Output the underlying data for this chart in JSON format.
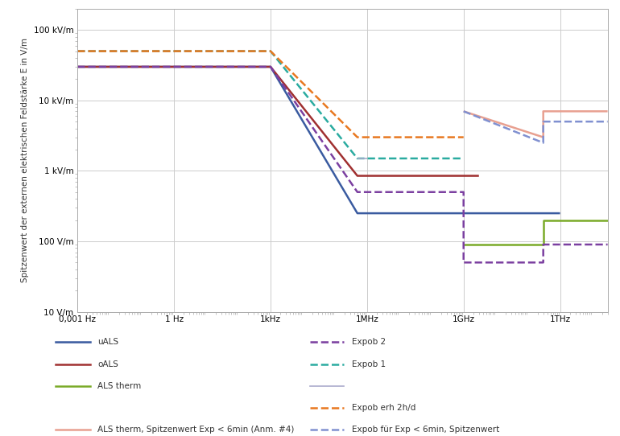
{
  "ylabel": "Spitzenwert der externen elektrischen Feldstärke E in V/m",
  "ytick_labels": [
    "10 V/m",
    "100 V/m",
    "1 kV/m",
    "10 kV/m",
    "100 kV/m"
  ],
  "ytick_vals": [
    10,
    100,
    1000,
    10000,
    100000
  ],
  "xtick_labels": [
    "0,001 Hz",
    "1 Hz",
    "1kHz",
    "1MHz",
    "1GHz",
    "1THz"
  ],
  "xtick_vals": [
    0.001,
    1,
    1000,
    1000000,
    1000000000,
    1000000000000
  ],
  "xlim_lo": 0.001,
  "xlim_hi": 30000000000000.0,
  "ylim_lo": 10,
  "ylim_hi": 200000,
  "series": [
    {
      "name": "uALS",
      "color": "#3A5BA0",
      "linestyle": "solid",
      "linewidth": 1.8,
      "x": [
        0.001,
        1000,
        500000,
        1000000,
        3000000000.0,
        1000000000000.0
      ],
      "y": [
        30000,
        30000,
        250,
        250,
        250,
        250
      ]
    },
    {
      "name": "oALS",
      "color": "#A03030",
      "linestyle": "solid",
      "linewidth": 1.8,
      "x": [
        0.001,
        1000,
        500000,
        1000000,
        3000000000.0
      ],
      "y": [
        30000,
        30000,
        850,
        850,
        850
      ]
    },
    {
      "name": "ALS therm",
      "color": "#7AAA28",
      "linestyle": "solid",
      "linewidth": 1.8,
      "x": [
        1000000000.0,
        1000000000.0,
        300000000000.0,
        300000000000.0,
        30000000000000.0
      ],
      "y": [
        90,
        90,
        90,
        200,
        200
      ]
    },
    {
      "name": "Expob 2",
      "color": "#7B3FA0",
      "linestyle": "dashed",
      "linewidth": 1.8,
      "x": [
        0.001,
        1000,
        500000,
        1000000000.0,
        1000000000.0,
        300000000000.0,
        300000000000.0,
        30000000000000.0
      ],
      "y": [
        30000,
        30000,
        500,
        500,
        50,
        50,
        90,
        90
      ]
    },
    {
      "name": "Expob 1",
      "color": "#2AABA0",
      "linestyle": "dashed",
      "linewidth": 1.8,
      "x": [
        0.001,
        1000,
        500000,
        1000000000.0
      ],
      "y": [
        50000,
        50000,
        1500,
        1500
      ]
    },
    {
      "name": "unnamed_lavender",
      "color": "#AAAACC",
      "linestyle": "solid",
      "linewidth": 1.2,
      "x": [
        500000,
        1000000
      ],
      "y": [
        1500,
        1500
      ]
    },
    {
      "name": "Expob erh 2h/d",
      "color": "#E87820",
      "linestyle": "dashed",
      "linewidth": 1.8,
      "x": [
        0.001,
        1000,
        500000,
        1000000000.0
      ],
      "y": [
        50000,
        50000,
        3000,
        3000
      ]
    },
    {
      "name": "ALS therm, Spitzenwert Exp < 6min (Anm. #4)",
      "color": "#E8A090",
      "linestyle": "solid",
      "linewidth": 1.8,
      "x": [
        1000000000.0,
        300000000000.0,
        300000000000.0,
        30000000000000.0
      ],
      "y": [
        7000,
        3000,
        7000,
        7000
      ]
    },
    {
      "name": "Expob fur Exp < 6min, Spitzenwert",
      "color": "#8090D0",
      "linestyle": "dashed",
      "linewidth": 1.8,
      "x": [
        1000000000.0,
        300000000000.0,
        300000000000.0,
        30000000000000.0
      ],
      "y": [
        7000,
        2500,
        5000,
        5000
      ]
    }
  ],
  "legend_entries_left": [
    {
      "name": "uALS",
      "color": "#3A5BA0",
      "linestyle": "solid",
      "linewidth": 1.8
    },
    {
      "name": "oALS",
      "color": "#A03030",
      "linestyle": "solid",
      "linewidth": 1.8
    },
    {
      "name": "ALS therm",
      "color": "#7AAA28",
      "linestyle": "solid",
      "linewidth": 1.8
    }
  ],
  "legend_entries_right": [
    {
      "name": "Expob 2",
      "color": "#7B3FA0",
      "linestyle": "dashed",
      "linewidth": 1.8
    },
    {
      "name": "Expob 1",
      "color": "#2AABA0",
      "linestyle": "dashed",
      "linewidth": 1.8
    },
    {
      "name": "",
      "color": "#AAAACC",
      "linestyle": "solid",
      "linewidth": 1.2
    },
    {
      "name": "Expob erh 2h/d",
      "color": "#E87820",
      "linestyle": "dashed",
      "linewidth": 1.8
    }
  ],
  "legend_bottom_left": {
    "name": "ALS therm, Spitzenwert Exp < 6min (Anm. #4)",
    "color": "#E8A090",
    "linestyle": "solid",
    "linewidth": 1.8
  },
  "legend_bottom_right": {
    "name": "Expob für Exp < 6min, Spitzenwert",
    "color": "#8090D0",
    "linestyle": "dashed",
    "linewidth": 1.8
  },
  "background_color": "#FFFFFF",
  "grid_color": "#CCCCCC",
  "spine_color": "#AAAAAA"
}
